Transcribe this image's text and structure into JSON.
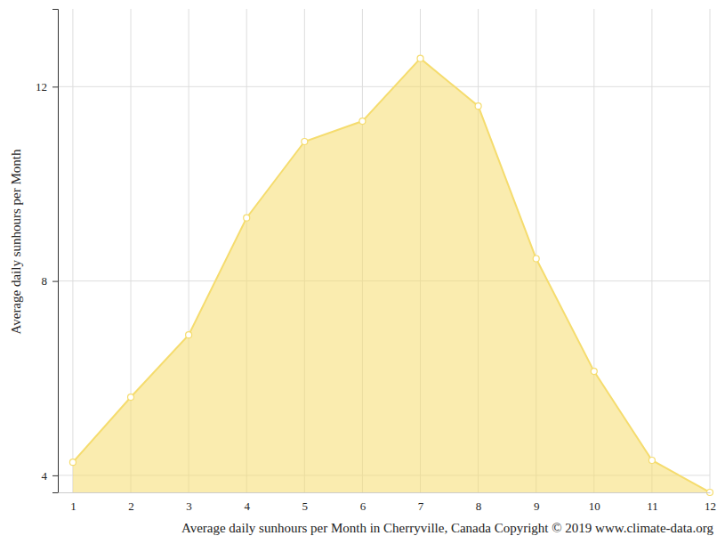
{
  "chart_data": {
    "type": "area",
    "x_label": "Average daily sunhours per Month in Cherryville, Canada Copyright © 2019 www.climate-data.org",
    "y_label": "Average daily sunhours per Month",
    "x": [
      1,
      2,
      3,
      4,
      5,
      6,
      7,
      8,
      9,
      10,
      11,
      12
    ],
    "values": [
      4.27,
      5.61,
      6.89,
      9.3,
      10.87,
      11.29,
      12.58,
      11.6,
      8.46,
      6.14,
      4.31,
      3.65
    ],
    "color": "#f5dc6e",
    "marker": "circle",
    "xlim": [
      0.74,
      12
    ],
    "xticks": [
      1,
      2,
      3,
      4,
      5,
      6,
      7,
      8,
      9,
      10,
      11,
      12
    ],
    "ylim": [
      3.65,
      13.6
    ],
    "yticks": [
      4,
      8,
      12
    ],
    "grid": true
  }
}
